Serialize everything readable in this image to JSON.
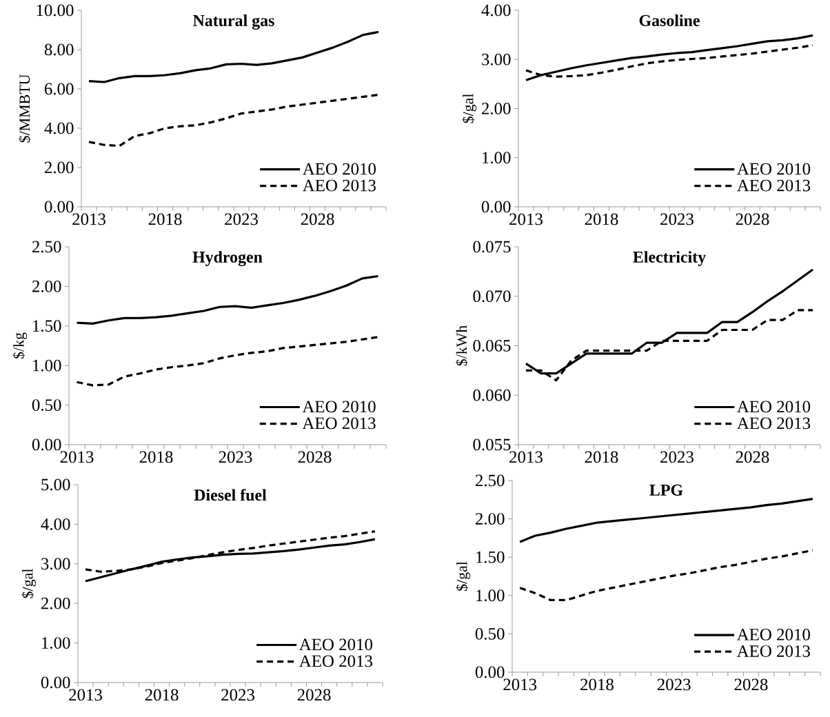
{
  "chart_data": [
    {
      "type": "line",
      "title": "Natural gas",
      "ylabel": "$/MMBTU",
      "categories": [
        "2013",
        null,
        null,
        null,
        null,
        "2018",
        null,
        null,
        null,
        null,
        "2023",
        null,
        null,
        null,
        null,
        "2028",
        null,
        null,
        null,
        null
      ],
      "ylim": [
        0,
        10
      ],
      "yticks": [
        {
          "value": 0,
          "label": "0.00"
        },
        {
          "value": 2,
          "label": "2.00"
        },
        {
          "value": 4,
          "label": "4.00"
        },
        {
          "value": 6,
          "label": "6.00"
        },
        {
          "value": 8,
          "label": "8.00"
        },
        {
          "value": 10,
          "label": "10.00"
        }
      ],
      "legend": "bottom right",
      "series": [
        {
          "name": "AEO 2010",
          "color": "#000000",
          "line_style": "solid",
          "values": [
            6.4,
            6.35,
            6.55,
            6.65,
            6.65,
            6.7,
            6.8,
            6.95,
            7.05,
            7.25,
            7.28,
            7.22,
            7.3,
            7.45,
            7.6,
            7.85,
            8.1,
            8.4,
            8.75,
            8.9
          ]
        },
        {
          "name": "AEO 2013",
          "color": "#000000",
          "line_style": "dashed",
          "values": [
            3.3,
            3.15,
            3.1,
            3.6,
            3.75,
            4.0,
            4.1,
            4.15,
            4.3,
            4.5,
            4.75,
            4.85,
            4.95,
            5.1,
            5.2,
            5.3,
            5.4,
            5.5,
            5.6,
            5.7
          ]
        }
      ]
    },
    {
      "type": "line",
      "title": "Gasoline",
      "ylabel": "$/gal",
      "categories": [
        "2013",
        null,
        null,
        null,
        null,
        "2018",
        null,
        null,
        null,
        null,
        "2023",
        null,
        null,
        null,
        null,
        "2028",
        null,
        null,
        null,
        null
      ],
      "ylim": [
        0,
        4
      ],
      "yticks": [
        {
          "value": 0,
          "label": "0.00"
        },
        {
          "value": 1,
          "label": "1.00"
        },
        {
          "value": 2,
          "label": "2.00"
        },
        {
          "value": 3,
          "label": "3.00"
        },
        {
          "value": 4,
          "label": "4.00"
        }
      ],
      "legend": "bottom right",
      "series": [
        {
          "name": "AEO 2010",
          "color": "#000000",
          "line_style": "solid",
          "values": [
            2.58,
            2.68,
            2.75,
            2.82,
            2.88,
            2.93,
            2.98,
            3.03,
            3.06,
            3.1,
            3.13,
            3.15,
            3.19,
            3.23,
            3.27,
            3.32,
            3.37,
            3.39,
            3.43,
            3.49
          ]
        },
        {
          "name": "AEO 2013",
          "color": "#000000",
          "line_style": "dashed",
          "values": [
            2.78,
            2.68,
            2.65,
            2.66,
            2.68,
            2.73,
            2.79,
            2.86,
            2.92,
            2.96,
            2.99,
            3.01,
            3.03,
            3.06,
            3.09,
            3.12,
            3.16,
            3.2,
            3.24,
            3.29
          ]
        }
      ]
    },
    {
      "type": "line",
      "title": "Hydrogen",
      "ylabel": "$/kg",
      "categories": [
        "2013",
        null,
        null,
        null,
        null,
        "2018",
        null,
        null,
        null,
        null,
        "2023",
        null,
        null,
        null,
        null,
        "2028",
        null,
        null,
        null,
        null
      ],
      "ylim": [
        0,
        2.5
      ],
      "yticks": [
        {
          "value": 0,
          "label": "0.00"
        },
        {
          "value": 0.5,
          "label": "0.50"
        },
        {
          "value": 1,
          "label": "1.00"
        },
        {
          "value": 1.5,
          "label": "1.50"
        },
        {
          "value": 2,
          "label": "2.00"
        },
        {
          "value": 2.5,
          "label": "2.50"
        }
      ],
      "legend": "bottom right",
      "series": [
        {
          "name": "AEO 2010",
          "color": "#000000",
          "line_style": "solid",
          "values": [
            1.54,
            1.53,
            1.57,
            1.6,
            1.6,
            1.61,
            1.63,
            1.66,
            1.69,
            1.74,
            1.75,
            1.73,
            1.76,
            1.79,
            1.83,
            1.88,
            1.94,
            2.01,
            2.1,
            2.13
          ]
        },
        {
          "name": "AEO 2013",
          "color": "#000000",
          "line_style": "dashed",
          "values": [
            0.79,
            0.75,
            0.76,
            0.86,
            0.9,
            0.95,
            0.98,
            1.0,
            1.03,
            1.09,
            1.13,
            1.16,
            1.18,
            1.22,
            1.24,
            1.26,
            1.28,
            1.3,
            1.33,
            1.36
          ]
        }
      ]
    },
    {
      "type": "line",
      "title": "Electricity",
      "ylabel": "$/kWh",
      "categories": [
        "2013",
        null,
        null,
        null,
        null,
        "2018",
        null,
        null,
        null,
        null,
        "2023",
        null,
        null,
        null,
        null,
        "2028",
        null,
        null,
        null,
        null
      ],
      "ylim": [
        0.055,
        0.075
      ],
      "yticks": [
        {
          "value": 0.055,
          "label": "0.055"
        },
        {
          "value": 0.06,
          "label": "0.060"
        },
        {
          "value": 0.065,
          "label": "0.065"
        },
        {
          "value": 0.07,
          "label": "0.070"
        },
        {
          "value": 0.075,
          "label": "0.075"
        }
      ],
      "legend": "bottom right",
      "series": [
        {
          "name": "AEO 2010",
          "color": "#000000",
          "line_style": "solid",
          "values": [
            0.0632,
            0.0622,
            0.0622,
            0.0632,
            0.0642,
            0.0642,
            0.0642,
            0.0642,
            0.0653,
            0.0653,
            0.0663,
            0.0663,
            0.0663,
            0.0674,
            0.0674,
            0.0684,
            0.0695,
            0.0705,
            0.0716,
            0.0727
          ]
        },
        {
          "name": "AEO 2013",
          "color": "#000000",
          "line_style": "dashed",
          "values": [
            0.0625,
            0.0625,
            0.0615,
            0.0635,
            0.0645,
            0.0645,
            0.0645,
            0.0645,
            0.0645,
            0.0655,
            0.0655,
            0.0655,
            0.0655,
            0.0666,
            0.0666,
            0.0666,
            0.0676,
            0.0676,
            0.0686,
            0.0686
          ]
        }
      ]
    },
    {
      "type": "line",
      "title": "Diesel fuel",
      "ylabel": "$/gal",
      "categories": [
        "2013",
        null,
        null,
        null,
        null,
        "2018",
        null,
        null,
        null,
        null,
        "2023",
        null,
        null,
        null,
        null,
        "2028",
        null,
        null,
        null,
        null
      ],
      "ylim": [
        0,
        5
      ],
      "yticks": [
        {
          "value": 0,
          "label": "0.00"
        },
        {
          "value": 1,
          "label": "1.00"
        },
        {
          "value": 2,
          "label": "2.00"
        },
        {
          "value": 3,
          "label": "3.00"
        },
        {
          "value": 4,
          "label": "4.00"
        },
        {
          "value": 5,
          "label": "5.00"
        }
      ],
      "legend": "bottom right",
      "series": [
        {
          "name": "AEO 2010",
          "color": "#000000",
          "line_style": "solid",
          "values": [
            2.56,
            2.66,
            2.76,
            2.86,
            2.95,
            3.05,
            3.11,
            3.16,
            3.19,
            3.23,
            3.25,
            3.26,
            3.29,
            3.32,
            3.36,
            3.41,
            3.46,
            3.49,
            3.55,
            3.62
          ]
        },
        {
          "name": "AEO 2013",
          "color": "#000000",
          "line_style": "dashed",
          "values": [
            2.86,
            2.8,
            2.82,
            2.86,
            2.93,
            3.02,
            3.08,
            3.14,
            3.22,
            3.29,
            3.35,
            3.4,
            3.46,
            3.51,
            3.56,
            3.61,
            3.66,
            3.7,
            3.76,
            3.82
          ]
        }
      ]
    },
    {
      "type": "line",
      "title": "LPG",
      "ylabel": "$/gal",
      "categories": [
        "2013",
        null,
        null,
        null,
        null,
        "2018",
        null,
        null,
        null,
        null,
        "2023",
        null,
        null,
        null,
        null,
        "2028",
        null,
        null,
        null,
        null
      ],
      "ylim": [
        0,
        2.5
      ],
      "yticks": [
        {
          "value": 0,
          "label": "0.00"
        },
        {
          "value": 0.5,
          "label": "0.50"
        },
        {
          "value": 1,
          "label": "1.00"
        },
        {
          "value": 1.5,
          "label": "1.50"
        },
        {
          "value": 2,
          "label": "2.00"
        },
        {
          "value": 2.5,
          "label": "2.50"
        }
      ],
      "legend": "bottom right",
      "series": [
        {
          "name": "AEO 2010",
          "color": "#000000",
          "line_style": "solid",
          "values": [
            1.7,
            1.78,
            1.82,
            1.87,
            1.91,
            1.95,
            1.97,
            1.99,
            2.01,
            2.03,
            2.05,
            2.07,
            2.09,
            2.11,
            2.13,
            2.15,
            2.18,
            2.2,
            2.23,
            2.26
          ]
        },
        {
          "name": "AEO 2013",
          "color": "#000000",
          "line_style": "dashed",
          "values": [
            1.1,
            1.03,
            0.94,
            0.94,
            1.0,
            1.06,
            1.1,
            1.14,
            1.18,
            1.22,
            1.26,
            1.29,
            1.33,
            1.37,
            1.4,
            1.44,
            1.48,
            1.51,
            1.55,
            1.59
          ]
        }
      ]
    }
  ]
}
